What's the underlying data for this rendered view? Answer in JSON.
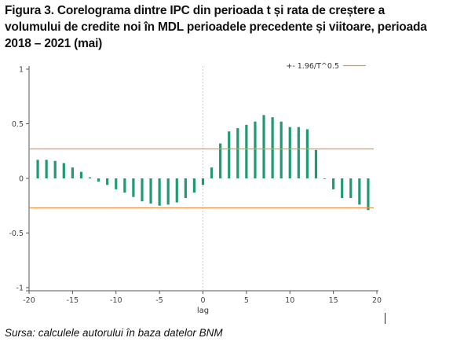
{
  "title": "Figura 3. Corelograma dintre IPC din perioada t și rata de creștere a volumului de credite noi în MDL perioadele precedente și viitoare, perioada 2018 – 2021 (mai)",
  "source": "Sursa: calculele autorului în baza datelor BNM",
  "colors": {
    "bars": "#1f9a72",
    "band": "#e8954a",
    "zero_line": "#cfcfcf",
    "axis": "#555555"
  },
  "chart_data": {
    "type": "bar",
    "xlabel": "lag",
    "ylabel": "",
    "xlim": [
      -20,
      20
    ],
    "ylim": [
      -1,
      1
    ],
    "xticks": [
      "-20",
      "-15",
      "-10",
      "-5",
      "0",
      "5",
      "10",
      "15",
      "20"
    ],
    "yticks": [
      "1",
      "0.5",
      "0",
      "-0.5",
      "-1"
    ],
    "x": [
      -19,
      -18,
      -17,
      -16,
      -15,
      -14,
      -13,
      -12,
      -11,
      -10,
      -9,
      -8,
      -7,
      -6,
      -5,
      -4,
      -3,
      -2,
      -1,
      0,
      1,
      2,
      3,
      4,
      5,
      6,
      7,
      8,
      9,
      10,
      11,
      12,
      13,
      14,
      15,
      16,
      17,
      18,
      19
    ],
    "values": [
      0.17,
      0.17,
      0.16,
      0.14,
      0.1,
      0.06,
      0.01,
      -0.03,
      -0.06,
      -0.1,
      -0.13,
      -0.17,
      -0.21,
      -0.23,
      -0.25,
      -0.24,
      -0.22,
      -0.18,
      -0.13,
      -0.06,
      0.1,
      0.32,
      0.43,
      0.46,
      0.49,
      0.52,
      0.58,
      0.56,
      0.52,
      0.47,
      0.47,
      0.45,
      0.26,
      0.0,
      -0.1,
      -0.18,
      -0.18,
      -0.24,
      -0.29
    ],
    "band": 0.27,
    "legend": [
      {
        "label": "+- 1.96/T^0.5"
      }
    ],
    "legend_position": "top-right",
    "grid": false
  }
}
